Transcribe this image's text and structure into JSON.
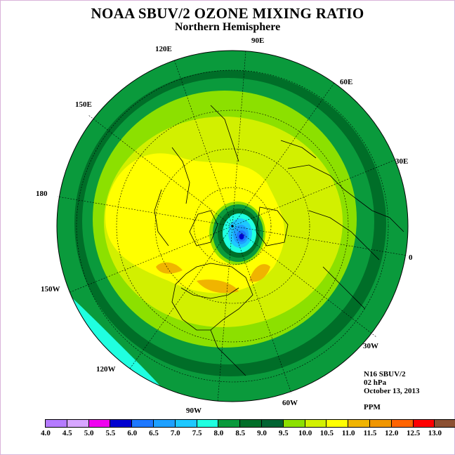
{
  "title": "NOAA SBUV/2 OZONE MIXING RATIO",
  "subtitle": "Northern Hemisphere",
  "longitude_labels": [
    "90E",
    "60E",
    "30E",
    "0",
    "30W",
    "60W",
    "90W",
    "120W",
    "150W",
    "180",
    "150E",
    "120E"
  ],
  "info": {
    "instrument": "N16 SBUV/2",
    "level": "02 hPa",
    "date": "October 13, 2013",
    "units": "PPM"
  },
  "colorbar": {
    "ticks": [
      "4.0",
      "4.5",
      "5.0",
      "5.5",
      "6.0",
      "6.5",
      "7.0",
      "7.5",
      "8.0",
      "8.5",
      "9.0",
      "9.5",
      "10.0",
      "10.5",
      "11.0",
      "11.5",
      "12.0",
      "12.5",
      "13.0"
    ],
    "colors": [
      "#b57bff",
      "#d7a6ff",
      "#f000f0",
      "#0000d0",
      "#1e78ff",
      "#1ea0ff",
      "#1ec8ff",
      "#20ffe0",
      "#0a9a3c",
      "#006e28",
      "#006432",
      "#8ce000",
      "#d2f000",
      "#ffff00",
      "#f0b400",
      "#f09600",
      "#ff6400",
      "#ff0000",
      "#8c5032"
    ]
  }
}
